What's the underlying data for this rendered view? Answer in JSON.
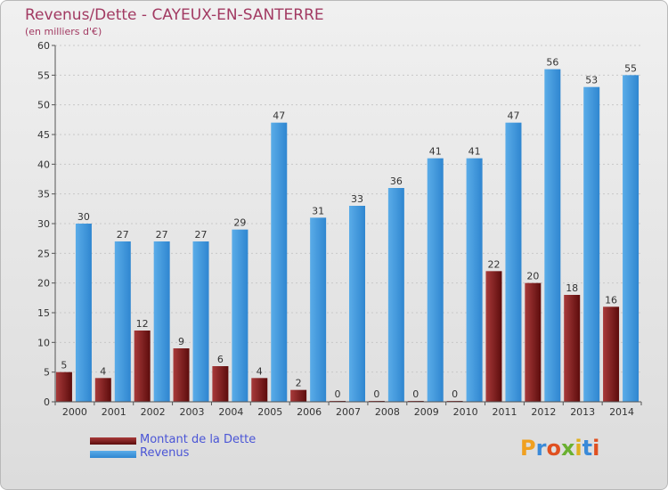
{
  "colors": {
    "dette_dark": "#5c0c0c",
    "dette_light": "#a83a3a",
    "revenus_dark": "#2f86d0",
    "revenus_light": "#5aace8",
    "title": "#a23a62",
    "legend_text": "#4a55d6"
  },
  "logo": {
    "text": "Proxiti",
    "letter_colors": [
      "#f0a020",
      "#3a8ad8",
      "#e05020",
      "#6ab030",
      "#e0b020",
      "#3a8ad8",
      "#e05020"
    ]
  },
  "legend": {
    "dette_label": "Montant de la Dette",
    "revenus_label": "Revenus"
  },
  "chart_data": {
    "type": "bar",
    "title": "Revenus/Dette - CAYEUX-EN-SANTERRE",
    "subtitle": "(en milliers d'€)",
    "xlabel": "",
    "ylabel": "",
    "ylim": [
      0,
      60
    ],
    "yticks": [
      0,
      5,
      10,
      15,
      20,
      25,
      30,
      35,
      40,
      45,
      50,
      55,
      60
    ],
    "categories": [
      "2000",
      "2001",
      "2002",
      "2003",
      "2004",
      "2005",
      "2006",
      "2007",
      "2008",
      "2009",
      "2010",
      "2011",
      "2012",
      "2013",
      "2014"
    ],
    "series": [
      {
        "name": "Montant de la Dette",
        "values": [
          5,
          4,
          12,
          9,
          6,
          4,
          2,
          0,
          0,
          0,
          0,
          22,
          20,
          18,
          16
        ]
      },
      {
        "name": "Revenus",
        "values": [
          30,
          27,
          27,
          27,
          29,
          47,
          31,
          33,
          36,
          41,
          41,
          47,
          56,
          53,
          55
        ]
      }
    ],
    "grid": true,
    "legend_position": "bottom-left"
  }
}
